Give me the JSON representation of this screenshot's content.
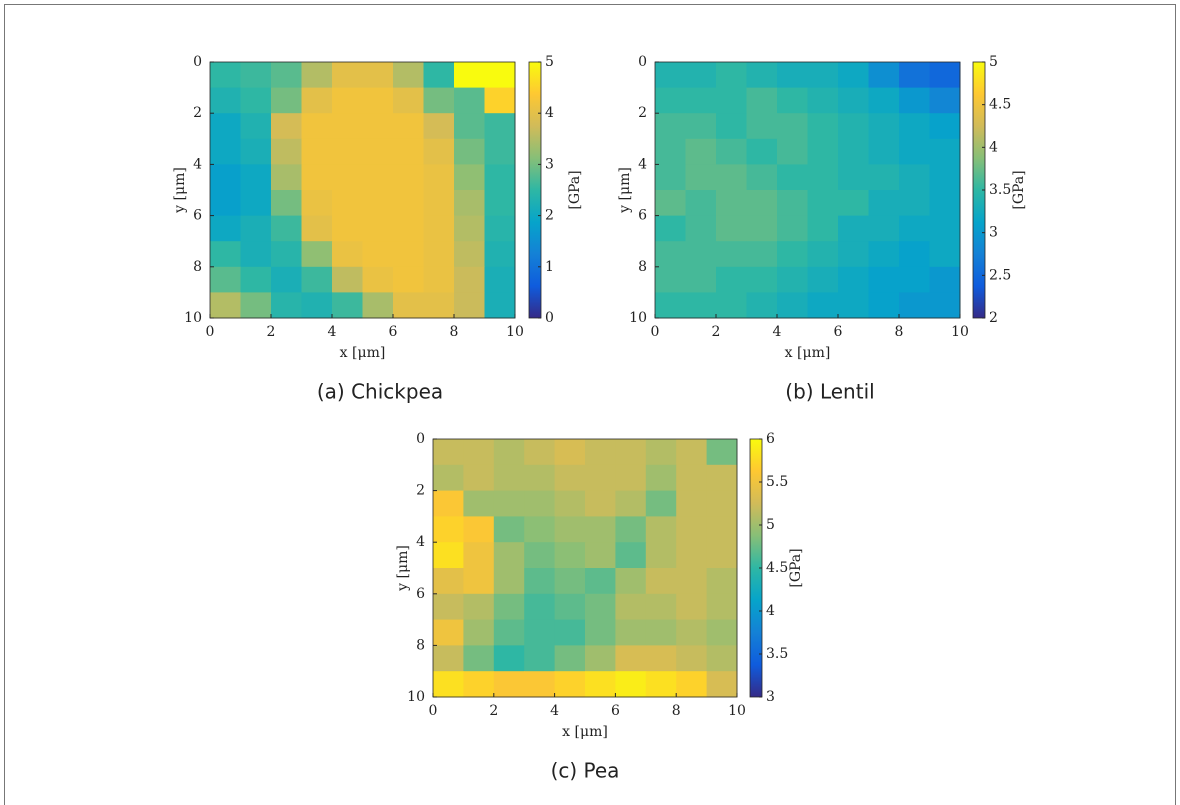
{
  "chart_data": [
    {
      "type": "heatmap",
      "caption": "(a) Chickpea",
      "xlabel": "x [μm]",
      "ylabel": "y [μm]",
      "colorbar_label": "[GPa]",
      "xlim": [
        0,
        10
      ],
      "ylim": [
        0,
        10
      ],
      "y_reversed": true,
      "xticks": [
        0,
        2,
        4,
        6,
        8,
        10
      ],
      "yticks": [
        0,
        2,
        4,
        6,
        8,
        10
      ],
      "clim": [
        0,
        5
      ],
      "cticks": [
        0,
        1,
        2,
        3,
        4,
        5
      ],
      "colormap": [
        "#352a87",
        "#0f5cdd",
        "#1481d6",
        "#06a4ca",
        "#2eb7a4",
        "#87bf77",
        "#d1bb59",
        "#fec832",
        "#f9fb0e"
      ],
      "values": [
        [
          2.5,
          2.6,
          2.8,
          3.5,
          4.0,
          4.0,
          3.5,
          2.5,
          5.0,
          5.0
        ],
        [
          2.3,
          2.5,
          3.0,
          4.0,
          4.2,
          4.2,
          4.0,
          3.0,
          2.8,
          4.5
        ],
        [
          2.0,
          2.3,
          3.8,
          4.2,
          4.2,
          4.2,
          4.2,
          3.8,
          2.8,
          2.6
        ],
        [
          2.0,
          2.2,
          3.6,
          4.2,
          4.2,
          4.2,
          4.2,
          4.0,
          3.0,
          2.6
        ],
        [
          1.8,
          2.0,
          3.4,
          4.2,
          4.2,
          4.2,
          4.2,
          4.1,
          3.2,
          2.5
        ],
        [
          1.8,
          2.0,
          3.0,
          4.1,
          4.2,
          4.2,
          4.2,
          4.1,
          3.4,
          2.5
        ],
        [
          2.0,
          2.2,
          2.6,
          4.0,
          4.2,
          4.2,
          4.2,
          4.1,
          3.5,
          2.4
        ],
        [
          2.5,
          2.2,
          2.4,
          3.2,
          4.1,
          4.2,
          4.2,
          4.1,
          3.6,
          2.3
        ],
        [
          2.8,
          2.5,
          2.2,
          2.6,
          3.6,
          4.1,
          4.2,
          4.1,
          3.7,
          2.2
        ],
        [
          3.5,
          3.0,
          2.4,
          2.3,
          2.6,
          3.4,
          4.0,
          4.0,
          3.7,
          2.2
        ]
      ]
    },
    {
      "type": "heatmap",
      "caption": "(b) Lentil",
      "xlabel": "x [μm]",
      "ylabel": "y [μm]",
      "colorbar_label": "[GPa]",
      "xlim": [
        0,
        10
      ],
      "ylim": [
        0,
        10
      ],
      "y_reversed": true,
      "xticks": [
        0,
        2,
        4,
        6,
        8,
        10
      ],
      "yticks": [
        0,
        2,
        4,
        6,
        8,
        10
      ],
      "clim": [
        2,
        5
      ],
      "cticks": [
        2,
        2.5,
        3,
        3.5,
        4,
        4.5,
        5
      ],
      "colormap": [
        "#352a87",
        "#0f5cdd",
        "#1481d6",
        "#06a4ca",
        "#2eb7a4",
        "#87bf77",
        "#d1bb59",
        "#fec832",
        "#f9fb0e"
      ],
      "values": [
        [
          3.4,
          3.4,
          3.5,
          3.4,
          3.3,
          3.3,
          3.2,
          2.9,
          2.6,
          2.5
        ],
        [
          3.5,
          3.5,
          3.5,
          3.6,
          3.5,
          3.4,
          3.3,
          3.2,
          3.0,
          2.8
        ],
        [
          3.6,
          3.6,
          3.5,
          3.6,
          3.6,
          3.5,
          3.4,
          3.3,
          3.2,
          3.1
        ],
        [
          3.6,
          3.7,
          3.6,
          3.5,
          3.6,
          3.5,
          3.4,
          3.3,
          3.2,
          3.2
        ],
        [
          3.6,
          3.7,
          3.7,
          3.6,
          3.5,
          3.5,
          3.4,
          3.4,
          3.3,
          3.2
        ],
        [
          3.7,
          3.6,
          3.7,
          3.7,
          3.6,
          3.5,
          3.5,
          3.3,
          3.3,
          3.2
        ],
        [
          3.5,
          3.6,
          3.7,
          3.7,
          3.6,
          3.5,
          3.3,
          3.3,
          3.2,
          3.2
        ],
        [
          3.6,
          3.6,
          3.6,
          3.6,
          3.5,
          3.4,
          3.3,
          3.2,
          3.1,
          3.2
        ],
        [
          3.6,
          3.6,
          3.5,
          3.5,
          3.4,
          3.3,
          3.2,
          3.1,
          3.1,
          3.0
        ],
        [
          3.5,
          3.5,
          3.5,
          3.4,
          3.3,
          3.2,
          3.2,
          3.1,
          3.0,
          3.0
        ]
      ]
    },
    {
      "type": "heatmap",
      "caption": "(c) Pea",
      "xlabel": "x [μm]",
      "ylabel": "y [μm]",
      "colorbar_label": "[GPa]",
      "xlim": [
        0,
        10
      ],
      "ylim": [
        0,
        10
      ],
      "y_reversed": true,
      "xticks": [
        0,
        2,
        4,
        6,
        8,
        10
      ],
      "yticks": [
        0,
        2,
        4,
        6,
        8,
        10
      ],
      "clim": [
        3,
        6
      ],
      "cticks": [
        3,
        3.5,
        4,
        4.5,
        5,
        5.5,
        6
      ],
      "colormap": [
        "#352a87",
        "#0f5cdd",
        "#1481d6",
        "#06a4ca",
        "#2eb7a4",
        "#87bf77",
        "#d1bb59",
        "#fec832",
        "#f9fb0e"
      ],
      "values": [
        [
          5.2,
          5.2,
          5.1,
          5.2,
          5.3,
          5.2,
          5.2,
          5.1,
          5.2,
          4.8
        ],
        [
          5.1,
          5.2,
          5.1,
          5.1,
          5.2,
          5.2,
          5.2,
          5.0,
          5.2,
          5.2
        ],
        [
          5.6,
          5.0,
          5.0,
          5.0,
          5.1,
          5.2,
          5.1,
          4.8,
          5.2,
          5.2
        ],
        [
          5.7,
          5.6,
          4.8,
          4.9,
          5.0,
          5.0,
          4.8,
          5.1,
          5.2,
          5.2
        ],
        [
          5.8,
          5.5,
          5.0,
          4.8,
          4.9,
          5.0,
          4.7,
          5.1,
          5.2,
          5.2
        ],
        [
          5.4,
          5.5,
          5.0,
          4.7,
          4.8,
          4.7,
          5.0,
          5.2,
          5.2,
          5.1
        ],
        [
          5.2,
          5.1,
          4.8,
          4.6,
          4.7,
          4.8,
          5.1,
          5.1,
          5.2,
          5.1
        ],
        [
          5.5,
          5.0,
          4.7,
          4.6,
          4.6,
          4.8,
          5.0,
          5.0,
          5.1,
          5.0
        ],
        [
          5.2,
          4.8,
          4.5,
          4.6,
          4.8,
          5.0,
          5.3,
          5.3,
          5.2,
          5.1
        ],
        [
          5.8,
          5.7,
          5.6,
          5.6,
          5.7,
          5.8,
          5.9,
          5.8,
          5.7,
          5.3
        ]
      ]
    }
  ]
}
